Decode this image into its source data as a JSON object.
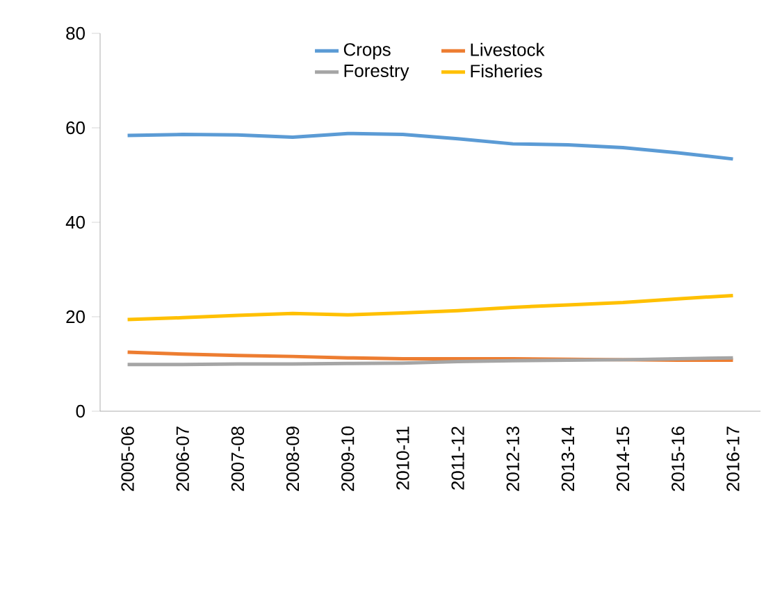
{
  "chart_data": {
    "type": "line",
    "categories": [
      "2005-06",
      "2006-07",
      "2007-08",
      "2008-09",
      "2009-10",
      "2010-11",
      "2011-12",
      "2012-13",
      "2013-14",
      "2014-15",
      "2015-16",
      "2016-17"
    ],
    "series": [
      {
        "name": "Crops",
        "color": "#5b9bd5",
        "values": [
          58.4,
          58.6,
          58.5,
          58.0,
          58.8,
          58.6,
          57.7,
          56.6,
          56.4,
          55.8,
          54.7,
          53.4
        ]
      },
      {
        "name": "Livestock",
        "color": "#ed7d31",
        "values": [
          12.5,
          12.1,
          11.8,
          11.6,
          11.3,
          11.1,
          11.1,
          11.1,
          11.0,
          10.9,
          10.8,
          10.8
        ]
      },
      {
        "name": "Forestry",
        "color": "#a5a5a5",
        "values": [
          9.9,
          9.9,
          10.0,
          10.0,
          10.1,
          10.2,
          10.5,
          10.7,
          10.8,
          10.9,
          11.1,
          11.3
        ]
      },
      {
        "name": "Fisheries",
        "color": "#ffc000",
        "values": [
          19.4,
          19.8,
          20.3,
          20.7,
          20.4,
          20.8,
          21.3,
          22.0,
          22.5,
          23.0,
          23.8,
          24.5
        ]
      }
    ],
    "ylim": [
      0,
      80
    ],
    "yticks": [
      0,
      20,
      40,
      60,
      80
    ],
    "grid": false,
    "legend": "top",
    "marker": "none",
    "line_style": "solid"
  }
}
